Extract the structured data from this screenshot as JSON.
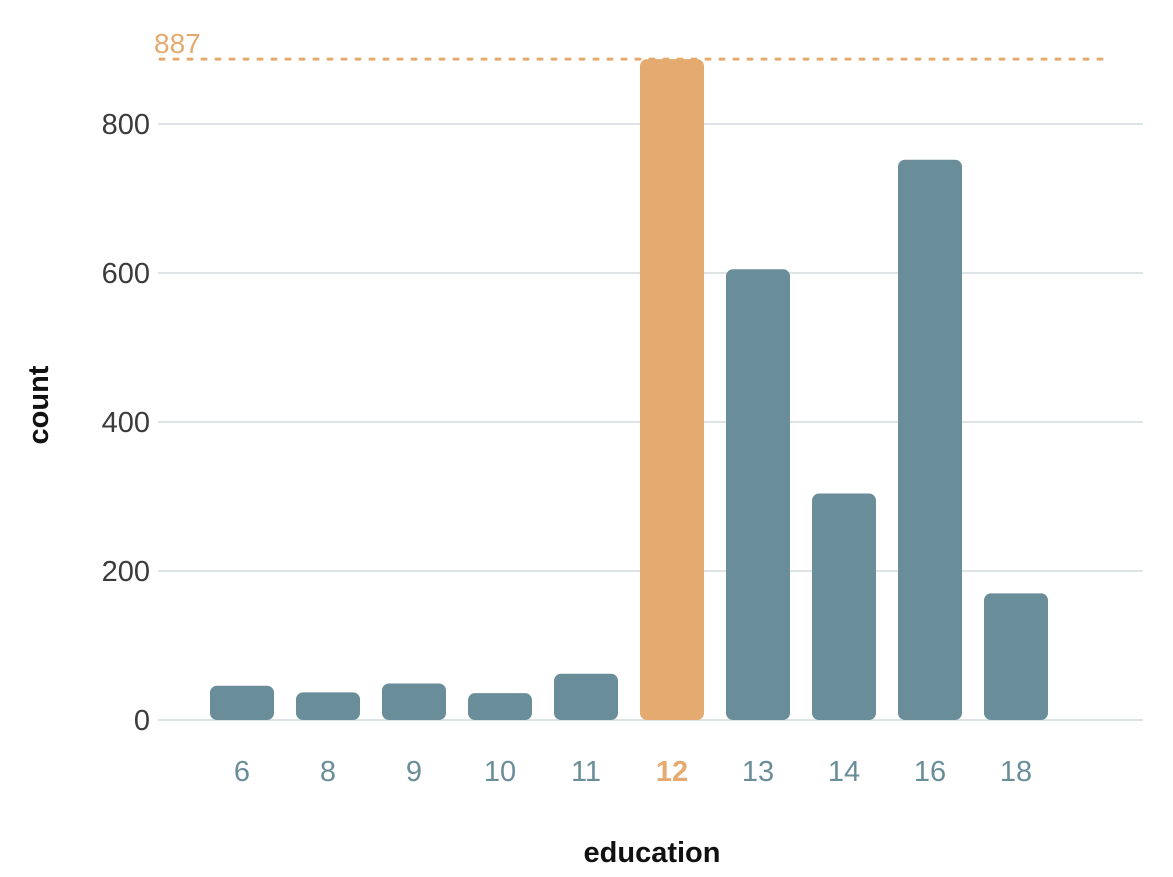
{
  "chart_data": {
    "type": "bar",
    "xlabel": "education",
    "ylabel": "count",
    "categories": [
      "6",
      "8",
      "9",
      "10",
      "11",
      "12",
      "13",
      "14",
      "16",
      "18"
    ],
    "values": [
      46,
      37,
      49,
      36,
      62,
      887,
      605,
      304,
      752,
      170
    ],
    "highlight_category": "12",
    "ylim": [
      0,
      887
    ],
    "y_ticks": [
      0,
      200,
      400,
      600,
      800
    ],
    "grid": true,
    "reference_line": {
      "value": 887,
      "label": "887"
    },
    "colors": {
      "bar": "#6a8e99",
      "highlight": "#e4aa6f",
      "tick_label": "#6a8e99"
    }
  }
}
